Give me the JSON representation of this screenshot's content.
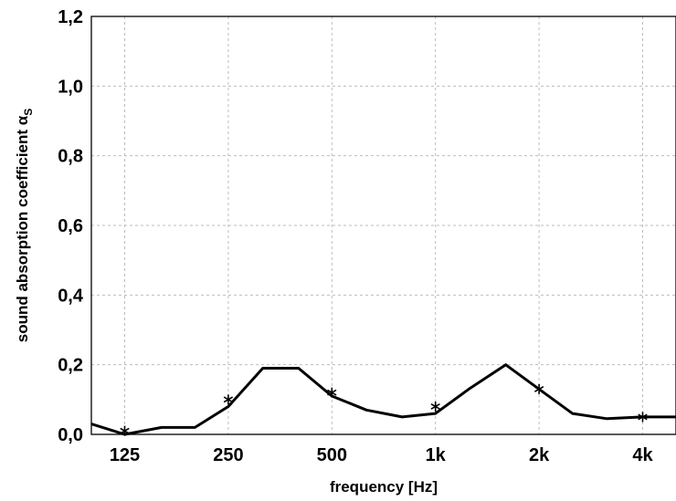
{
  "chart_data": {
    "type": "line",
    "xlabel": "frequency [Hz]",
    "ylabel": "sound absorption coefficient α",
    "ylabel_subscript": "S",
    "x_scale": "log",
    "xlim": [
      100,
      5000
    ],
    "ylim": [
      0,
      1.2
    ],
    "grid": true,
    "x_ticks": [
      {
        "value": 125,
        "label": "125"
      },
      {
        "value": 250,
        "label": "250"
      },
      {
        "value": 500,
        "label": "500"
      },
      {
        "value": 1000,
        "label": "1k"
      },
      {
        "value": 2000,
        "label": "2k"
      },
      {
        "value": 4000,
        "label": "4k"
      }
    ],
    "y_ticks": [
      {
        "value": 0.0,
        "label": "0,0"
      },
      {
        "value": 0.2,
        "label": "0,2"
      },
      {
        "value": 0.4,
        "label": "0,4"
      },
      {
        "value": 0.6,
        "label": "0,6"
      },
      {
        "value": 0.8,
        "label": "0,8"
      },
      {
        "value": 1.0,
        "label": "1,0"
      },
      {
        "value": 1.2,
        "label": "1,2"
      }
    ],
    "series": [
      {
        "style": "line",
        "color": "#000000",
        "points": [
          [
            100,
            0.03
          ],
          [
            125,
            0.0
          ],
          [
            160,
            0.02
          ],
          [
            200,
            0.02
          ],
          [
            250,
            0.08
          ],
          [
            315,
            0.19
          ],
          [
            400,
            0.19
          ],
          [
            500,
            0.11
          ],
          [
            630,
            0.07
          ],
          [
            800,
            0.05
          ],
          [
            1000,
            0.06
          ],
          [
            1250,
            0.13
          ],
          [
            1600,
            0.2
          ],
          [
            2000,
            0.13
          ],
          [
            2500,
            0.06
          ],
          [
            3150,
            0.045
          ],
          [
            4000,
            0.05
          ],
          [
            5000,
            0.05
          ]
        ]
      },
      {
        "style": "markers",
        "marker": "asterisk",
        "color": "#000000",
        "points": [
          [
            125,
            0.01
          ],
          [
            250,
            0.1
          ],
          [
            500,
            0.12
          ],
          [
            1000,
            0.08
          ],
          [
            2000,
            0.13
          ],
          [
            4000,
            0.05
          ]
        ]
      }
    ]
  }
}
